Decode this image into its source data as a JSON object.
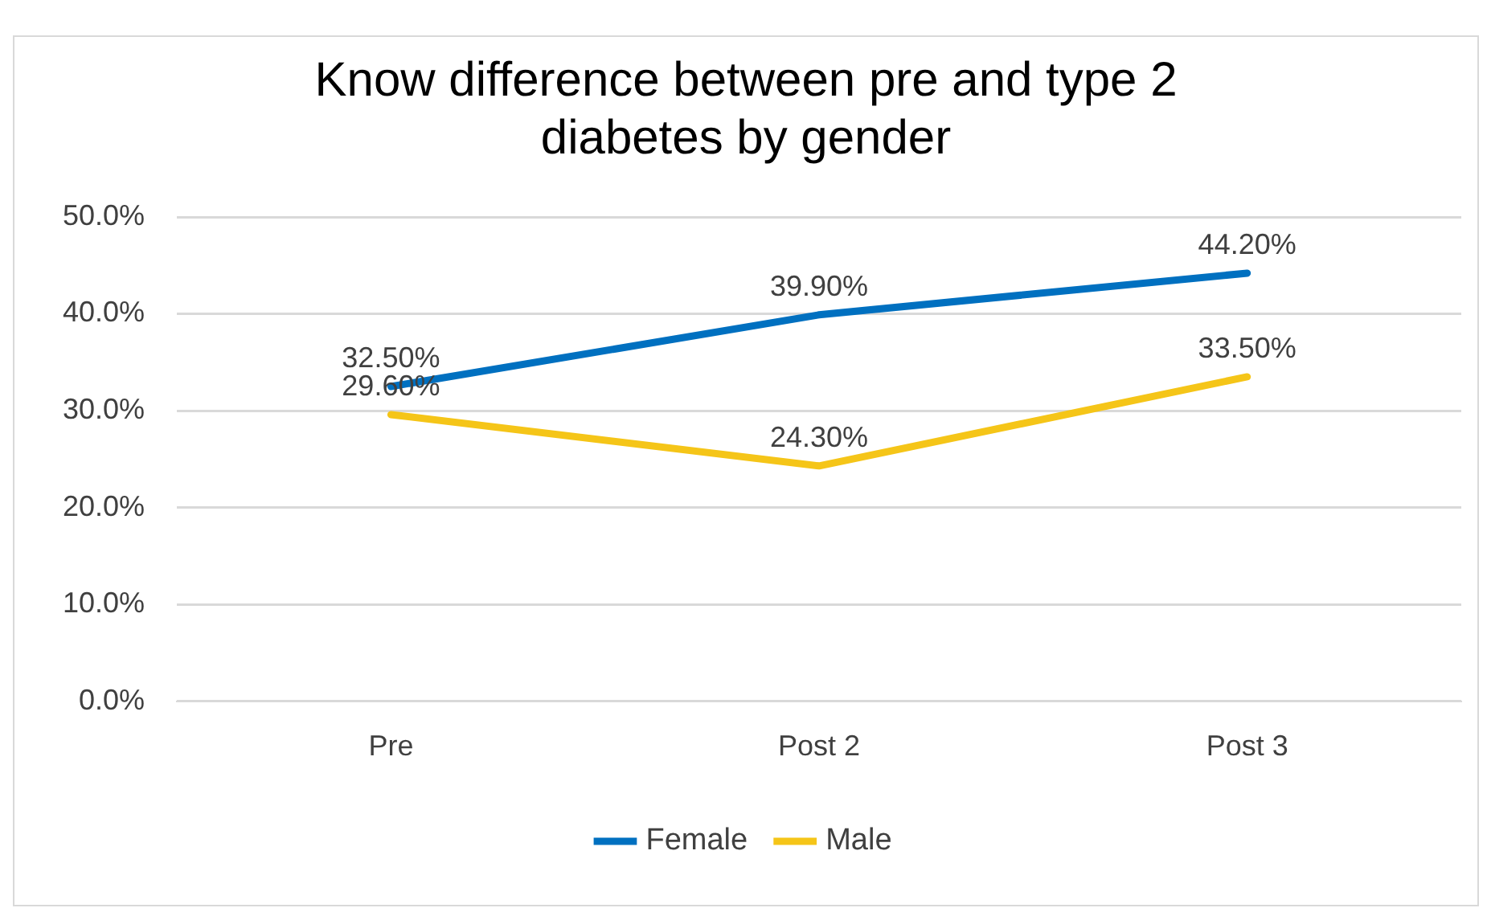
{
  "chart_data": {
    "type": "line",
    "title": "Know difference between pre and type 2 diabetes by gender",
    "categories": [
      "Pre",
      "Post 2",
      "Post 3"
    ],
    "series": [
      {
        "name": "Female",
        "color": "#0070c0",
        "values": [
          32.5,
          39.9,
          44.2
        ],
        "value_labels": [
          "32.50%",
          "39.90%",
          "44.20%"
        ]
      },
      {
        "name": "Male",
        "color": "#f5c518",
        "values": [
          29.6,
          24.3,
          33.5
        ],
        "value_labels": [
          "29.60%",
          "24.30%",
          "33.50%"
        ]
      }
    ],
    "ylim": [
      0,
      50
    ],
    "yticks": [
      {
        "value": 0,
        "label": "0.0%"
      },
      {
        "value": 10,
        "label": "10.0%"
      },
      {
        "value": 20,
        "label": "20.0%"
      },
      {
        "value": 30,
        "label": "30.0%"
      },
      {
        "value": 40,
        "label": "40.0%"
      },
      {
        "value": 50,
        "label": "50.0%"
      }
    ],
    "grid": "y",
    "legend": "bottom",
    "marker": "none",
    "line_style": "solid"
  }
}
